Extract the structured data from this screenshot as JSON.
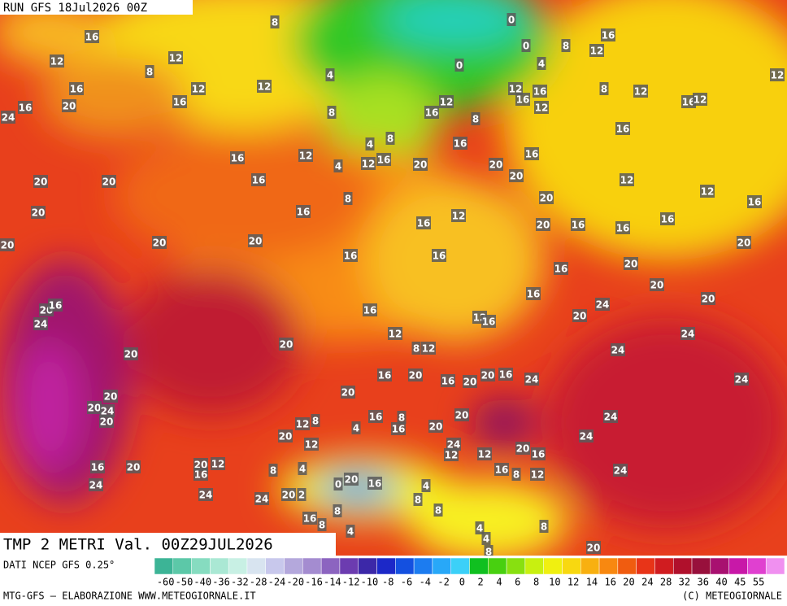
{
  "header": {
    "run": "RUN GFS 18Jul2026 00Z",
    "title": "TMP 2 METRI Val. 00Z29JUL2026"
  },
  "map": {
    "contour_labels": [
      16,
      12,
      8,
      12,
      12,
      16,
      20,
      16,
      24,
      16,
      12,
      4,
      8,
      0,
      0,
      0,
      4,
      8,
      16,
      12,
      12,
      16,
      16,
      12,
      8,
      12,
      16,
      12,
      12,
      12,
      16,
      8,
      8,
      4,
      16,
      12,
      8,
      4,
      8,
      12,
      16,
      16,
      20,
      20,
      20,
      20,
      20,
      20,
      16,
      20,
      16,
      20,
      20,
      16,
      16,
      12,
      12,
      16,
      20,
      16,
      12,
      20,
      16,
      16,
      16,
      20,
      16,
      16,
      16,
      20,
      20,
      16,
      20,
      20,
      24,
      12,
      16,
      16,
      12,
      24,
      24,
      8,
      12,
      20,
      20,
      20,
      16,
      24,
      16,
      20,
      16,
      20,
      20,
      16,
      24,
      24,
      20,
      20,
      20,
      24,
      20,
      16,
      8,
      16,
      20,
      20,
      4,
      12,
      8,
      20,
      12,
      24,
      12,
      12,
      20,
      16,
      24,
      24,
      16,
      20,
      20,
      12,
      16,
      4,
      8,
      16,
      8,
      12,
      24,
      24,
      24,
      24,
      20,
      2,
      0,
      20,
      16,
      4,
      8,
      8,
      16,
      8,
      8,
      4,
      4,
      4,
      8,
      20,
      8
    ]
  },
  "footer": {
    "source": "DATI NCEP GFS 0.25°",
    "credit": "MTG-GFS — ELABORAZIONE WWW.METEOGIORNALE.IT",
    "copyright": "(C) METEOGIORNALE",
    "colorbar": {
      "labels": [
        -60,
        -50,
        -40,
        -36,
        -32,
        -28,
        -24,
        -20,
        -16,
        -14,
        -12,
        -10,
        -8,
        -6,
        -4,
        -2,
        0,
        2,
        4,
        6,
        8,
        10,
        12,
        14,
        16,
        20,
        24,
        28,
        32,
        36,
        40,
        45,
        55
      ],
      "colors": [
        "#3cb496",
        "#5cc8a8",
        "#86dcc0",
        "#aae8d4",
        "#c8f0e4",
        "#d8e4f0",
        "#c8c8ec",
        "#b4a8dc",
        "#a48cd0",
        "#8c64c0",
        "#6c3cb0",
        "#3c28a8",
        "#1c28c8",
        "#1450e0",
        "#1c7cf0",
        "#28a8f8",
        "#3cd0f8",
        "#10c020",
        "#48d010",
        "#88e010",
        "#c8f010",
        "#f0f010",
        "#f8d810",
        "#f8b010",
        "#f88810",
        "#f05c10",
        "#e83418",
        "#d01c20",
        "#b0102c",
        "#98103c",
        "#a81070",
        "#c818a8",
        "#e040d0",
        "#f090f0"
      ]
    }
  }
}
